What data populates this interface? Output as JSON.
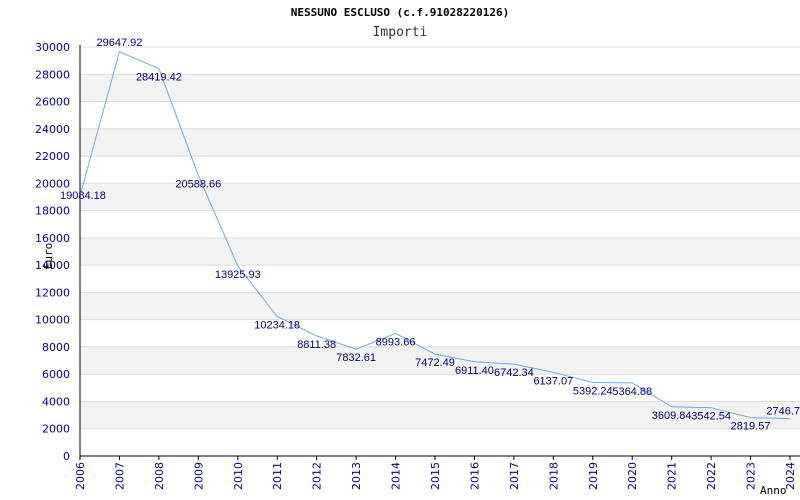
{
  "chart_data": {
    "type": "line",
    "title": "NESSUNO ESCLUSO (c.f.91028220126)",
    "subtitle": "Importi",
    "ylabel": "Euro",
    "xlabel": "Anno",
    "ylim": [
      0,
      30000
    ],
    "ytick_step": 2000,
    "grid": "horizontal alternating bands",
    "line_color": "#6aaae8",
    "label_color": "#000080",
    "x": [
      "2006",
      "2007",
      "2008",
      "2009",
      "2010",
      "2011",
      "2012",
      "2013",
      "2014",
      "2015",
      "2016",
      "2017",
      "2018",
      "2019",
      "2020",
      "2021",
      "2022",
      "2023",
      "2024"
    ],
    "values": [
      19084.18,
      29647.92,
      28419.42,
      20588.66,
      13925.93,
      10234.18,
      8811.38,
      7832.61,
      8993.66,
      7472.49,
      6911.4,
      6742.34,
      6137.07,
      5392.24,
      5364.88,
      3609.84,
      3542.54,
      2819.57,
      2746.7
    ],
    "data_labels": [
      "19084.18",
      "29647.92",
      "28419.42",
      "20588.66",
      "13925.93",
      "10234.18",
      "8811.38",
      "7832.61",
      "8993.66",
      "7472.49",
      "6911.40",
      "6742.34",
      "6137.07",
      "5392.24",
      "5364.88",
      "3609.84",
      "3542.54",
      "2819.57",
      "2746.7"
    ]
  }
}
